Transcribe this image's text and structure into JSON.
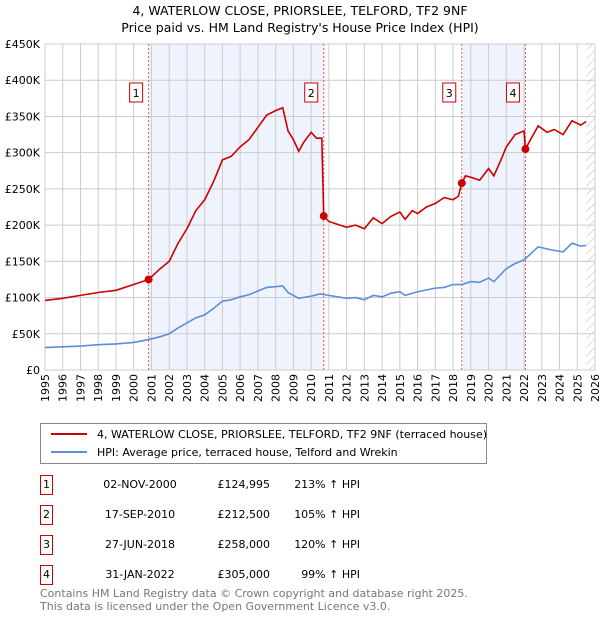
{
  "title": "4, WATERLOW CLOSE, PRIORSLEE, TELFORD, TF2 9NF",
  "subtitle": "Price paid vs. HM Land Registry's House Price Index (HPI)",
  "colors": {
    "price": "#cc0000",
    "hpi": "#5b8ed6",
    "shade": "#eef3fd"
  },
  "chart_data": {
    "type": "line",
    "title": "4, WATERLOW CLOSE, PRIORSLEE, TELFORD, TF2 9NF",
    "xlim": [
      1995,
      2026
    ],
    "ylim": [
      0,
      450000
    ],
    "xticks": [
      "1995",
      "1996",
      "1997",
      "1998",
      "1999",
      "2000",
      "2001",
      "2002",
      "2003",
      "2004",
      "2005",
      "2006",
      "2007",
      "2008",
      "2009",
      "2010",
      "2011",
      "2012",
      "2013",
      "2014",
      "2015",
      "2016",
      "2017",
      "2018",
      "2019",
      "2020",
      "2021",
      "2022",
      "2023",
      "2024",
      "2025",
      "2026"
    ],
    "yticks": [
      {
        "v": 0,
        "l": "£0"
      },
      {
        "v": 50000,
        "l": "£50K"
      },
      {
        "v": 100000,
        "l": "£100K"
      },
      {
        "v": 150000,
        "l": "£150K"
      },
      {
        "v": 200000,
        "l": "£200K"
      },
      {
        "v": 250000,
        "l": "£250K"
      },
      {
        "v": 300000,
        "l": "£300K"
      },
      {
        "v": 350000,
        "l": "£350K"
      },
      {
        "v": 400000,
        "l": "£400K"
      },
      {
        "v": 450000,
        "l": "£450K"
      }
    ],
    "series": [
      {
        "name": "4, WATERLOW CLOSE, PRIORSLEE, TELFORD, TF2 9NF (terraced house)",
        "color": "#cc0000",
        "x": [
          1995,
          1996,
          1997,
          1998,
          1999,
          2000,
          2000.84,
          2001.5,
          2002,
          2002.5,
          2003,
          2003.5,
          2004,
          2004.5,
          2005,
          2005.5,
          2006,
          2006.5,
          2007,
          2007.5,
          2008,
          2008.4,
          2008.7,
          2009,
          2009.3,
          2009.6,
          2010,
          2010.3,
          2010.6,
          2010.71,
          2011,
          2011.5,
          2012,
          2012.5,
          2013,
          2013.5,
          2014,
          2014.5,
          2015,
          2015.3,
          2015.7,
          2016,
          2016.5,
          2017,
          2017.5,
          2018,
          2018.3,
          2018.49,
          2018.7,
          2019,
          2019.5,
          2020,
          2020.3,
          2020.7,
          2021,
          2021.5,
          2022,
          2022.08,
          2022.3,
          2022.8,
          2023.3,
          2023.7,
          2024.2,
          2024.7,
          2025.2,
          2025.5
        ],
        "y": [
          96000,
          99000,
          103000,
          107000,
          110000,
          118000,
          124995,
          140000,
          150000,
          175000,
          195000,
          220000,
          235000,
          260000,
          290000,
          295000,
          308000,
          318000,
          335000,
          352000,
          358000,
          362000,
          330000,
          318000,
          302000,
          315000,
          328000,
          320000,
          320000,
          212500,
          205000,
          201000,
          197000,
          200000,
          195000,
          210000,
          202000,
          212000,
          218000,
          208000,
          220000,
          216000,
          225000,
          230000,
          238000,
          235000,
          240000,
          258000,
          268000,
          266000,
          262000,
          278000,
          268000,
          290000,
          308000,
          325000,
          330000,
          305000,
          315000,
          337000,
          328000,
          332000,
          325000,
          344000,
          338000,
          343000
        ]
      },
      {
        "name": "HPI: Average price, terraced house, Telford and Wrekin",
        "color": "#5b8ed6",
        "x": [
          1995,
          1996,
          1997,
          1998,
          1999,
          2000,
          2000.84,
          2001.5,
          2002,
          2002.5,
          2003,
          2003.5,
          2004,
          2004.5,
          2005,
          2005.5,
          2006,
          2006.5,
          2007,
          2007.5,
          2008,
          2008.4,
          2008.7,
          2009.3,
          2010,
          2010.5,
          2011,
          2012,
          2012.5,
          2013,
          2013.5,
          2014,
          2014.5,
          2015,
          2015.3,
          2016,
          2017,
          2017.5,
          2018,
          2018.5,
          2019,
          2019.5,
          2020,
          2020.3,
          2021,
          2021.5,
          2022,
          2022.8,
          2023.5,
          2024.2,
          2024.7,
          2025.2,
          2025.5
        ],
        "y": [
          31000,
          32000,
          33000,
          35000,
          36000,
          38000,
          42000,
          46000,
          50000,
          58000,
          65000,
          72000,
          76000,
          85000,
          95000,
          97000,
          101000,
          104000,
          109000,
          114000,
          115000,
          116000,
          107000,
          99000,
          102000,
          105000,
          103000,
          99000,
          100000,
          97000,
          103000,
          101000,
          106000,
          108000,
          103000,
          108000,
          113000,
          114000,
          118000,
          118000,
          122000,
          121000,
          127000,
          122000,
          140000,
          147000,
          152000,
          170000,
          166000,
          163000,
          175000,
          171000,
          172000
        ]
      }
    ],
    "sales": [
      {
        "n": "1",
        "x": 2000.84,
        "y": 124995
      },
      {
        "n": "2",
        "x": 2010.71,
        "y": 212500
      },
      {
        "n": "3",
        "x": 2018.49,
        "y": 258000
      },
      {
        "n": "4",
        "x": 2022.08,
        "y": 305000
      }
    ],
    "shaded_ranges": [
      [
        2000.84,
        2010.71
      ],
      [
        2018.49,
        2022.08
      ]
    ],
    "forecast_from": 2025.5
  },
  "legend": {
    "price": "4, WATERLOW CLOSE, PRIORSLEE, TELFORD, TF2 9NF (terraced house)",
    "hpi": "HPI: Average price, terraced house, Telford and Wrekin"
  },
  "transactions": [
    {
      "n": "1",
      "date": "02-NOV-2000",
      "price": "£124,995",
      "hpi": "213% ↑ HPI"
    },
    {
      "n": "2",
      "date": "17-SEP-2010",
      "price": "£212,500",
      "hpi": "105% ↑ HPI"
    },
    {
      "n": "3",
      "date": "27-JUN-2018",
      "price": "£258,000",
      "hpi": "120% ↑ HPI"
    },
    {
      "n": "4",
      "date": "31-JAN-2022",
      "price": "£305,000",
      "hpi": "99% ↑ HPI"
    }
  ],
  "footer": {
    "line1": "Contains HM Land Registry data © Crown copyright and database right 2025.",
    "line2": "This data is licensed under the Open Government Licence v3.0."
  }
}
